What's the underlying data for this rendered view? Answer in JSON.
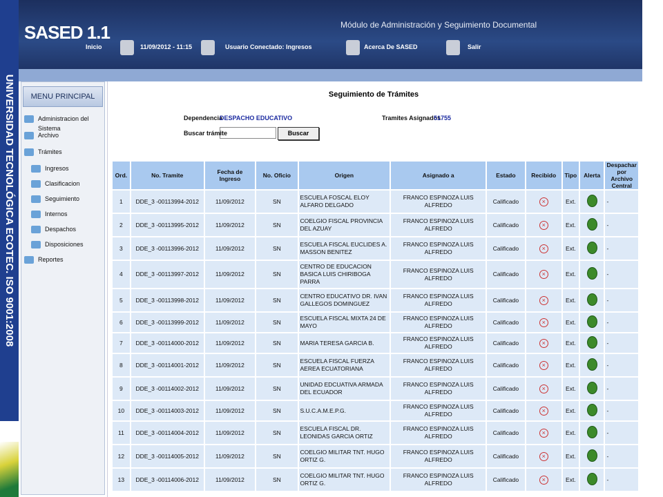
{
  "side_banner": "UNIVERSIDAD TECNOLÓGICA ECOTEC. ISO 9001:2008",
  "header": {
    "app_title": "SASED 1.1",
    "module": "Módulo de Administración y Seguimiento Documental",
    "nav": [
      "Inicio",
      "11/09/2012 - 11:15",
      "Usuario Conectado: Ingresos",
      "Acerca De SASED",
      "Salir"
    ]
  },
  "menu": {
    "title": "MENU PRINCIPAL",
    "items": [
      {
        "label": "Administracion del Sistema"
      },
      {
        "label": "Archivo"
      },
      {
        "label": "Trámites",
        "children": [
          "Ingresos",
          "Clasificacion",
          "Seguimiento",
          "Internos",
          "Despachos",
          "Disposiciones"
        ]
      },
      {
        "label": "Reportes"
      }
    ]
  },
  "content": {
    "title": "Seguimiento de Trámites",
    "dependencia_label": "Dependencia",
    "dependencia": "DESPACHO EDUCATIVO",
    "asignados_label": "Tramites Asignados",
    "asignados": "51755",
    "search_label": "Buscar trámite",
    "search_button": "Buscar"
  },
  "table": {
    "headers": [
      "Ord.",
      "No. Tramite",
      "Fecha de Ingreso",
      "No. Oficio",
      "Origen",
      "Asignado a",
      "Estado",
      "Recibido",
      "Tipo",
      "Alerta",
      "Despachar por Archivo Central"
    ],
    "rows": [
      {
        "ord": "1",
        "tramite": "DDE_3 -00113994-2012",
        "fecha": "11/09/2012",
        "oficio": "SN",
        "origen": "ESCUELA FOSCAL ELOY ALFARO DELGADO",
        "asignado": "FRANCO ESPINOZA LUIS ALFREDO",
        "estado": "Calificado",
        "tipo": "Ext.",
        "despachar": "-"
      },
      {
        "ord": "2",
        "tramite": "DDE_3 -00113995-2012",
        "fecha": "11/09/2012",
        "oficio": "SN",
        "origen": "COELGIO FISCAL PROVINCIA DEL AZUAY",
        "asignado": "FRANCO ESPINOZA LUIS ALFREDO",
        "estado": "Calificado",
        "tipo": "Ext.",
        "despachar": "-"
      },
      {
        "ord": "3",
        "tramite": "DDE_3 -00113996-2012",
        "fecha": "11/09/2012",
        "oficio": "SN",
        "origen": "ESCUELA FISCAL EUCLIDES A. MASSON BENITEZ",
        "asignado": "FRANCO ESPINOZA LUIS ALFREDO",
        "estado": "Calificado",
        "tipo": "Ext.",
        "despachar": "-"
      },
      {
        "ord": "4",
        "tramite": "DDE_3 -00113997-2012",
        "fecha": "11/09/2012",
        "oficio": "SN",
        "origen": "CENTRO DE EDUCACION BASICA LUIS CHIRIBOGA PARRA",
        "asignado": "FRANCO ESPINOZA LUIS ALFREDO",
        "estado": "Calificado",
        "tipo": "Ext.",
        "despachar": "-"
      },
      {
        "ord": "5",
        "tramite": "DDE_3 -00113998-2012",
        "fecha": "11/09/2012",
        "oficio": "SN",
        "origen": "CENTRO EDUCATIVO DR. IVAN GALLEGOS DOMINGUEZ",
        "asignado": "FRANCO ESPINOZA LUIS ALFREDO",
        "estado": "Calificado",
        "tipo": "Ext.",
        "despachar": "-"
      },
      {
        "ord": "6",
        "tramite": "DDE_3 -00113999-2012",
        "fecha": "11/09/2012",
        "oficio": "SN",
        "origen": "ESCUELA FISCAL MIXTA 24 DE MAYO",
        "asignado": "FRANCO ESPINOZA LUIS ALFREDO",
        "estado": "Calificado",
        "tipo": "Ext.",
        "despachar": "-"
      },
      {
        "ord": "7",
        "tramite": "DDE_3 -00114000-2012",
        "fecha": "11/09/2012",
        "oficio": "SN",
        "origen": "MARIA TERESA GARCIA B.",
        "asignado": "FRANCO ESPINOZA LUIS ALFREDO",
        "estado": "Calificado",
        "tipo": "Ext.",
        "despachar": "-"
      },
      {
        "ord": "8",
        "tramite": "DDE_3 -00114001-2012",
        "fecha": "11/09/2012",
        "oficio": "SN",
        "origen": "ESCUELA FISCAL FUERZA AEREA ECUATORIANA",
        "asignado": "FRANCO ESPINOZA LUIS ALFREDO",
        "estado": "Calificado",
        "tipo": "Ext.",
        "despachar": "-"
      },
      {
        "ord": "9",
        "tramite": "DDE_3 -00114002-2012",
        "fecha": "11/09/2012",
        "oficio": "SN",
        "origen": "UNIDAD EDCUATIVA ARMADA DEL ECUADOR",
        "asignado": "FRANCO ESPINOZA LUIS ALFREDO",
        "estado": "Calificado",
        "tipo": "Ext.",
        "despachar": "-"
      },
      {
        "ord": "10",
        "tramite": "DDE_3 -00114003-2012",
        "fecha": "11/09/2012",
        "oficio": "SN",
        "origen": "S.U.C.A.M.E.P.G.",
        "asignado": "FRANCO ESPINOZA LUIS ALFREDO",
        "estado": "Calificado",
        "tipo": "Ext.",
        "despachar": "-"
      },
      {
        "ord": "11",
        "tramite": "DDE_3 -00114004-2012",
        "fecha": "11/09/2012",
        "oficio": "SN",
        "origen": "ESCUELA FISCAL DR. LEONIDAS GARCIA ORTIZ",
        "asignado": "FRANCO ESPINOZA LUIS ALFREDO",
        "estado": "Calificado",
        "tipo": "Ext.",
        "despachar": "-"
      },
      {
        "ord": "12",
        "tramite": "DDE_3 -00114005-2012",
        "fecha": "11/09/2012",
        "oficio": "SN",
        "origen": "COELGIO MILITAR TNT. HUGO ORTIZ G.",
        "asignado": "FRANCO ESPINOZA LUIS ALFREDO",
        "estado": "Calificado",
        "tipo": "Ext.",
        "despachar": "-"
      },
      {
        "ord": "13",
        "tramite": "DDE_3 -00114006-2012",
        "fecha": "11/09/2012",
        "oficio": "SN",
        "origen": "COELGIO MILITAR TNT. HUGO ORTIZ G.",
        "asignado": "FRANCO ESPINOZA LUIS ALFREDO",
        "estado": "Calificado",
        "tipo": "Ext.",
        "despachar": "-"
      }
    ]
  }
}
